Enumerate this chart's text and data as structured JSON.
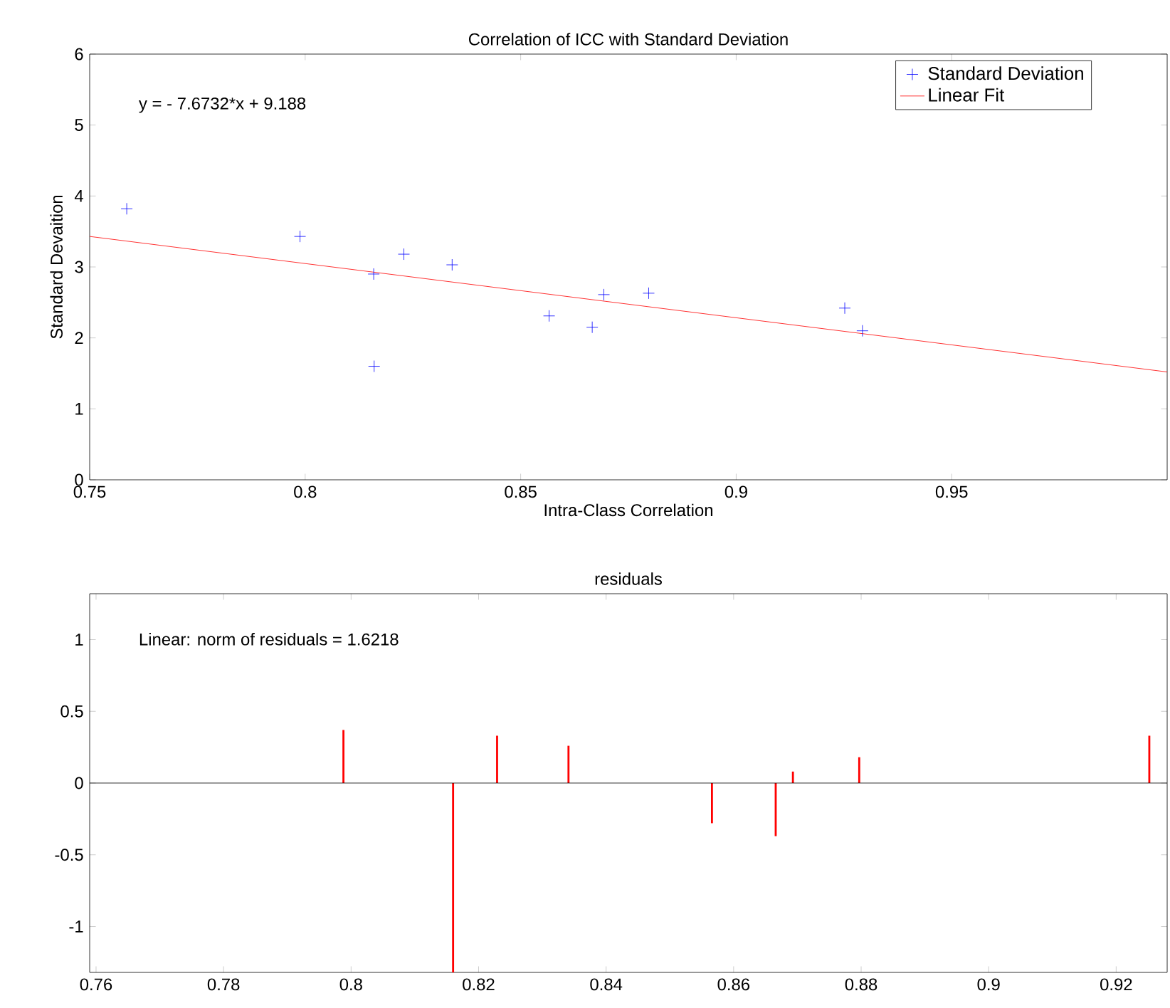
{
  "chart_data": [
    {
      "type": "scatter",
      "title": "Correlation of ICC with Standard Deviation",
      "xlabel": "Intra-Class Correlation",
      "ylabel": "Standard Devaition",
      "annotations": [
        "y = - 7.6732*x + 9.188"
      ],
      "series": [
        {
          "name": "Standard Deviation",
          "type": "scatter",
          "color": "#0000ff",
          "marker": "cross",
          "x": [
            0.7586,
            0.7988,
            0.8159,
            0.816,
            0.8229,
            0.8341,
            0.8566,
            0.8666,
            0.8693,
            0.8797,
            0.9252,
            0.9293
          ],
          "values": [
            3.82,
            3.43,
            2.9,
            1.6,
            3.18,
            3.03,
            2.31,
            2.15,
            2.61,
            2.63,
            2.42,
            2.1
          ]
        },
        {
          "name": "Linear Fit",
          "type": "line",
          "color": "#ff0000",
          "x": [
            0.75,
            1.0
          ],
          "values": [
            3.43,
            1.52
          ]
        }
      ],
      "xlim": [
        0.75,
        1.0
      ],
      "ylim": [
        0,
        6
      ],
      "xticks": [
        0.75,
        0.8,
        0.85,
        0.9,
        0.95
      ],
      "yticks": [
        0,
        1,
        2,
        3,
        4,
        5,
        6
      ],
      "legend": "top right"
    },
    {
      "type": "bar",
      "title": "residuals",
      "annotations": [
        "Linear: norm of residuals = 1.6218"
      ],
      "series": [
        {
          "color": "#ff0000",
          "x": [
            0.7988,
            0.816,
            0.8229,
            0.8341,
            0.8566,
            0.8666,
            0.8693,
            0.8797,
            0.9252
          ],
          "values": [
            0.37,
            -1.32,
            0.33,
            0.26,
            -0.28,
            -0.37,
            0.08,
            0.18,
            0.33
          ]
        }
      ],
      "ref_lines": [
        {
          "axis": "y",
          "value": 0,
          "color": "#000000"
        }
      ],
      "xlim": [
        0.759,
        0.928
      ],
      "ylim": [
        -1.32,
        1.32
      ],
      "xticks": [
        0.76,
        0.78,
        0.8,
        0.82,
        0.84,
        0.86,
        0.88,
        0.9,
        0.92
      ],
      "yticks": [
        -1,
        -0.5,
        0,
        0.5,
        1
      ]
    }
  ]
}
